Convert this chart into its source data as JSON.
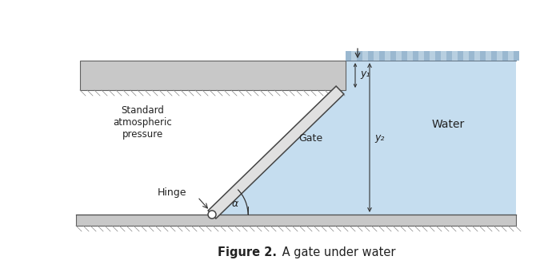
{
  "bg_color": "#ffffff",
  "water_color": "#c5ddef",
  "gate_color": "#d4d4d4",
  "slab_color": "#c8c8c8",
  "floor_color": "#c8c8c8",
  "text_color": "#222222",
  "figure_caption_bold": "Figure 2.",
  "figure_caption_rest": " A gate under water",
  "label_y1": "y₁",
  "label_y2": "y₂",
  "label_water": "Water",
  "label_gate": "Gate",
  "label_hinge": "Hinge",
  "label_alpha": "α",
  "label_atm": "Standard\natmospheric\npressure",
  "figsize": [
    6.95,
    3.31
  ],
  "dpi": 100
}
